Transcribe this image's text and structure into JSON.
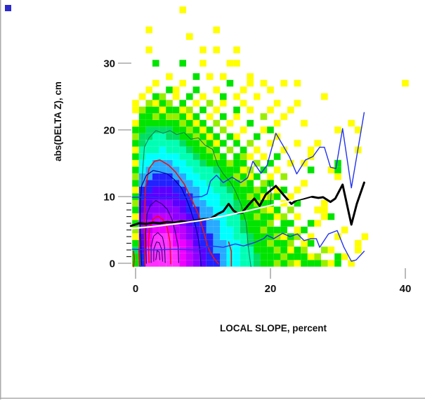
{
  "figure": {
    "corner_marker_color": "#2B2BCB",
    "frame_border_color": "#ABABAB",
    "major_tick_color": "#A9A9A9",
    "minor_tick_color": "#222222"
  },
  "chart_data": {
    "type": "heatmap",
    "title": "",
    "xlabel": "LOCAL SLOPE, percent",
    "ylabel": "abs(DELTA Z), cm",
    "x_ticks": [
      0,
      20,
      40
    ],
    "y_ticks": [
      0,
      10,
      20,
      30
    ],
    "y_minor_ticks": [
      1,
      2,
      3,
      4,
      5,
      6,
      7,
      8,
      9
    ],
    "xlim": [
      -2,
      42
    ],
    "ylim": [
      -1.5,
      39
    ],
    "grid": false,
    "legend": "none",
    "bin_size": {
      "x_percent": 1,
      "y_cm": 1
    },
    "palette": {
      "a": "#FFFF00",
      "b": "#99EE00",
      "c": "#00E400",
      "d": "#00DE64",
      "e": "#00FFB4",
      "f": "#00FFFF",
      "g": "#28AAFF",
      "h": "#2222FF",
      "i": "#5A00FF",
      "j": "#8C00FF",
      "k": "#BE00FF",
      "l": "#F000FF",
      "m": "#FF30FF"
    },
    "grid_rows_bottom_to_top": [
      "chmmmmmlkjihhgffeedccbcbacccbac.a.........",
      "chmmmmmlkjihhgffeedcccbcccab..ca..........",
      "dimmmmmlkjihggffeecccbcacb..ba...a........",
      "cilmmmllkihhggffedccbccb.ac......a........",
      "ailmmmlkjihhgffeedcccbacb.a...a...a.......",
      "bjklllkkjihggffedccbccc.ac.....a..........",
      "cjkkkkkjihhggfeedcccb.cc..ca..............",
      "ajjkkkjjihggffeeccbccab.a...ac............",
      "cijjjjjihhggffedcccbac.b...aa.............",
      "biijjjiihggffeedccbcc.a.c...a.............",
      "chiiiiihhgfffeeccbcabc.a..................",
      "ahhiiihhggffeedcccbc.ac.a.................",
      "cghhhhhggffeedccbc.bc....a................",
      "bgghhhggffeeeccbcac.a.b.......a...........",
      "cfgggggffeeedcccab.c.a....c..ac...........",
      "affgggffeedcccbcc.b.c..a.a....c...........",
      "cefffffeedccbc.cba.a.c....a...............",
      "aeeefeeedccbc.b.c.a...a...a......a........",
      "cdeeeeedccbcac.c.b..a...a..a..............",
      "bddeeddccbcac.ca..c..a....................",
      "ccddddccbcac.b..a..ac.........a..a........",
      "accccccbcac.b.a..c...a...a......a.........",
      ".ccbcbbcac.a.c.a...b..a...................",
      "abccaccab.c.a..c.a..a..a..................",
      "a.bacb.c.a.b.a..a....a..a.................",
      ".a.cb.a.c.a..c.a..a.........a.............",
      "..a..ca..c..a...a...a.....................",
      "...a...a......c..a.a..a.a...............a.",
      ".....a...c.a.a...a........................",
      "..........................................",
      "...c...c..a...aa..........................",
      "..........................................",
      "..a.......a.a..a..........................",
      "..........................................",
      "........a.................................",
      "..a.........a.............................",
      "..........................................",
      "..........................................",
      ".......a.................................."
    ],
    "overlays": {
      "median_line": {
        "name": "running median",
        "color": "#000000",
        "width": 3,
        "points": [
          [
            -0.7,
            5.6
          ],
          [
            0.5,
            6.0
          ],
          [
            1.6,
            5.9
          ],
          [
            2.6,
            6.1
          ],
          [
            3.6,
            6.0
          ],
          [
            4.7,
            6.2
          ],
          [
            5.7,
            6.1
          ],
          [
            6.8,
            6.3
          ],
          [
            7.8,
            6.2
          ],
          [
            8.9,
            6.4
          ],
          [
            9.9,
            6.6
          ],
          [
            11.1,
            6.7
          ],
          [
            12.2,
            7.4
          ],
          [
            13.0,
            7.8
          ],
          [
            13.8,
            8.9
          ],
          [
            14.5,
            7.9
          ],
          [
            15.1,
            7.5
          ],
          [
            15.8,
            7.6
          ],
          [
            16.7,
            8.7
          ],
          [
            17.6,
            9.7
          ],
          [
            18.4,
            8.6
          ],
          [
            19.3,
            10.3
          ],
          [
            20.8,
            11.6
          ],
          [
            21.9,
            10.3
          ],
          [
            23.1,
            8.9
          ],
          [
            23.9,
            9.5
          ],
          [
            24.9,
            9.7
          ],
          [
            26.0,
            10.0
          ],
          [
            27.1,
            9.8
          ],
          [
            27.8,
            9.9
          ],
          [
            28.9,
            9.2
          ],
          [
            29.6,
            9.7
          ],
          [
            30.7,
            11.8
          ],
          [
            32.0,
            5.8
          ],
          [
            32.8,
            8.9
          ],
          [
            33.9,
            12.1
          ]
        ]
      },
      "smooth_line": {
        "name": "smoothed trend",
        "color": "#FFFFFF",
        "width": 2.2,
        "points": [
          [
            -0.7,
            5.2
          ],
          [
            2.5,
            5.5
          ],
          [
            5.9,
            5.9
          ],
          [
            9.5,
            6.4
          ],
          [
            13.2,
            7.1
          ],
          [
            16.8,
            7.9
          ],
          [
            20.5,
            8.8
          ],
          [
            24.3,
            9.7
          ],
          [
            28.1,
            10.8
          ]
        ]
      },
      "upper_band": {
        "name": "upper percentile",
        "color": "#2233EE",
        "width": 1.4,
        "points": [
          [
            -0.5,
            9.9
          ],
          [
            2.0,
            9.9
          ],
          [
            3.9,
            9.8
          ],
          [
            6.0,
            9.9
          ],
          [
            8.0,
            9.9
          ],
          [
            9.8,
            10.0
          ],
          [
            10.6,
            10.4
          ],
          [
            11.1,
            12.3
          ],
          [
            12.0,
            13.2
          ],
          [
            13.0,
            12.1
          ],
          [
            14.3,
            12.9
          ],
          [
            15.6,
            12.1
          ],
          [
            16.6,
            12.8
          ],
          [
            17.4,
            15.3
          ],
          [
            18.6,
            13.5
          ],
          [
            19.5,
            14.7
          ],
          [
            20.8,
            19.5
          ],
          [
            21.9,
            17.6
          ],
          [
            22.8,
            16.0
          ],
          [
            23.9,
            13.4
          ],
          [
            25.2,
            15.5
          ],
          [
            26.3,
            16.0
          ],
          [
            27.3,
            17.4
          ],
          [
            28.0,
            17.4
          ],
          [
            28.9,
            14.4
          ],
          [
            29.7,
            14.2
          ],
          [
            30.7,
            20.2
          ],
          [
            32.0,
            11.3
          ],
          [
            33.9,
            22.6
          ]
        ]
      },
      "lower_band": {
        "name": "lower percentile",
        "color": "#2233EE",
        "width": 1.4,
        "points": [
          [
            -0.5,
            2.1
          ],
          [
            2.8,
            2.0
          ],
          [
            5.9,
            2.1
          ],
          [
            9.1,
            2.0
          ],
          [
            11.1,
            2.6
          ],
          [
            13.0,
            2.4
          ],
          [
            14.8,
            2.9
          ],
          [
            16.0,
            2.6
          ],
          [
            17.6,
            3.1
          ],
          [
            19.0,
            3.7
          ],
          [
            19.5,
            4.2
          ],
          [
            20.5,
            3.7
          ],
          [
            21.8,
            4.5
          ],
          [
            22.9,
            4.0
          ],
          [
            24.0,
            4.4
          ],
          [
            25.0,
            3.4
          ],
          [
            26.0,
            3.7
          ],
          [
            26.8,
            3.7
          ],
          [
            27.3,
            2.4
          ],
          [
            28.6,
            4.4
          ],
          [
            29.9,
            4.9
          ],
          [
            30.9,
            2.4
          ],
          [
            32.0,
            0.3
          ],
          [
            32.7,
            0.5
          ],
          [
            33.9,
            1.8
          ]
        ]
      },
      "contours": [
        {
          "name": "outer density contour",
          "color": "#117755",
          "width": 1,
          "points": [
            [
              0.8,
              -0.5
            ],
            [
              0.7,
              7.9
            ],
            [
              1.0,
              13.2
            ],
            [
              1.3,
              17.4
            ],
            [
              2.0,
              18.8
            ],
            [
              3.0,
              19.9
            ],
            [
              4.1,
              19.5
            ],
            [
              5.1,
              19.9
            ],
            [
              6.1,
              19.3
            ],
            [
              7.2,
              19.6
            ],
            [
              8.2,
              18.6
            ],
            [
              9.3,
              18.8
            ],
            [
              10.3,
              17.7
            ],
            [
              11.4,
              17.1
            ],
            [
              12.2,
              14.7
            ],
            [
              13.0,
              13.4
            ],
            [
              14.1,
              12.1
            ],
            [
              14.8,
              10.8
            ],
            [
              15.6,
              8.9
            ],
            [
              16.4,
              6.1
            ],
            [
              16.7,
              2.6
            ],
            [
              17.1,
              -0.5
            ]
          ]
        },
        {
          "name": "outer contour fragment",
          "color": "#117755",
          "width": 1,
          "points": [
            [
              19.8,
              12.3
            ],
            [
              20.1,
              10.5
            ],
            [
              20.0,
              8.7
            ]
          ]
        },
        {
          "name": "red contour outer",
          "color": "#EE1111",
          "width": 1.6,
          "points": [
            [
              1.4,
              -0.3
            ],
            [
              1.3,
              4.7
            ],
            [
              1.3,
              7.9
            ],
            [
              1.5,
              11.6
            ],
            [
              2.0,
              14.2
            ],
            [
              2.8,
              15.3
            ],
            [
              3.6,
              15.5
            ],
            [
              4.9,
              14.7
            ],
            [
              5.9,
              13.7
            ],
            [
              7.2,
              11.9
            ],
            [
              8.2,
              9.8
            ],
            [
              9.3,
              7.4
            ],
            [
              10.1,
              4.7
            ],
            [
              10.6,
              2.8
            ],
            [
              11.1,
              1.6
            ],
            [
              11.8,
              0.5
            ],
            [
              12.3,
              -0.1
            ]
          ]
        },
        {
          "name": "red contour fragment right",
          "color": "#EE1111",
          "width": 1.6,
          "points": [
            [
              13.8,
              3.2
            ],
            [
              14.2,
              1.8
            ],
            [
              14.2,
              -0.4
            ]
          ]
        },
        {
          "name": "red contour fragment left a",
          "color": "#EE1111",
          "width": 1.6,
          "points": [
            [
              -0.3,
              1.8
            ],
            [
              -0.2,
              0.7
            ],
            [
              -0.3,
              -0.5
            ]
          ]
        },
        {
          "name": "red contour fragment left b",
          "color": "#EE1111",
          "width": 1.6,
          "points": [
            [
              0.7,
              3.9
            ],
            [
              0.5,
              1.8
            ],
            [
              0.6,
              -0.3
            ]
          ]
        },
        {
          "name": "navy contour",
          "color": "#000099",
          "width": 1.2,
          "points": [
            [
              0.9,
              -0.3
            ],
            [
              0.7,
              4.7
            ],
            [
              0.7,
              8.9
            ],
            [
              0.9,
              11.6
            ],
            [
              1.6,
              13.2
            ],
            [
              2.6,
              13.9
            ],
            [
              3.6,
              13.7
            ],
            [
              4.7,
              13.4
            ],
            [
              5.7,
              12.6
            ],
            [
              6.8,
              11.3
            ],
            [
              7.6,
              9.5
            ],
            [
              8.2,
              7.9
            ],
            [
              8.9,
              5.6
            ],
            [
              9.4,
              3.2
            ],
            [
              9.6,
              1.1
            ],
            [
              9.7,
              -0.4
            ]
          ]
        },
        {
          "name": "violet contour",
          "color": "#2A0080",
          "width": 1.2,
          "points": [
            [
              1.6,
              0.0
            ],
            [
              1.5,
              4.7
            ],
            [
              1.7,
              7.4
            ],
            [
              2.2,
              8.7
            ],
            [
              3.0,
              9.4
            ],
            [
              3.9,
              8.9
            ],
            [
              4.7,
              8.1
            ],
            [
              5.4,
              6.6
            ],
            [
              5.9,
              4.7
            ],
            [
              6.3,
              2.6
            ],
            [
              6.4,
              0.1
            ]
          ]
        },
        {
          "name": "red contour inner",
          "color": "#FF0000",
          "width": 1.4,
          "points": [
            [
              2.0,
              0.1
            ],
            [
              1.9,
              3.2
            ],
            [
              2.1,
              5.3
            ],
            [
              2.6,
              6.6
            ],
            [
              3.3,
              7.1
            ],
            [
              4.1,
              6.5
            ],
            [
              4.7,
              5.3
            ],
            [
              5.1,
              3.2
            ],
            [
              5.2,
              -0.1
            ]
          ]
        },
        {
          "name": "core contour a",
          "color": "#1A0060",
          "width": 1,
          "points": [
            [
              2.3,
              0.1
            ],
            [
              2.3,
              2.6
            ],
            [
              2.7,
              4.1
            ],
            [
              3.3,
              4.6
            ],
            [
              4.0,
              3.9
            ],
            [
              4.3,
              2.4
            ],
            [
              4.4,
              0.1
            ]
          ]
        },
        {
          "name": "core contour b",
          "color": "#1A0060",
          "width": 1,
          "points": [
            [
              2.7,
              0.3
            ],
            [
              2.7,
              2.1
            ],
            [
              3.1,
              3.2
            ],
            [
              3.5,
              3.1
            ],
            [
              3.9,
              2.0
            ],
            [
              4.0,
              0.3
            ]
          ]
        },
        {
          "name": "core contour c",
          "color": "#1A0060",
          "width": 1,
          "points": [
            [
              3.0,
              0.5
            ],
            [
              3.2,
              1.9
            ],
            [
              3.5,
              1.7
            ],
            [
              3.6,
              0.5
            ]
          ]
        }
      ]
    }
  }
}
